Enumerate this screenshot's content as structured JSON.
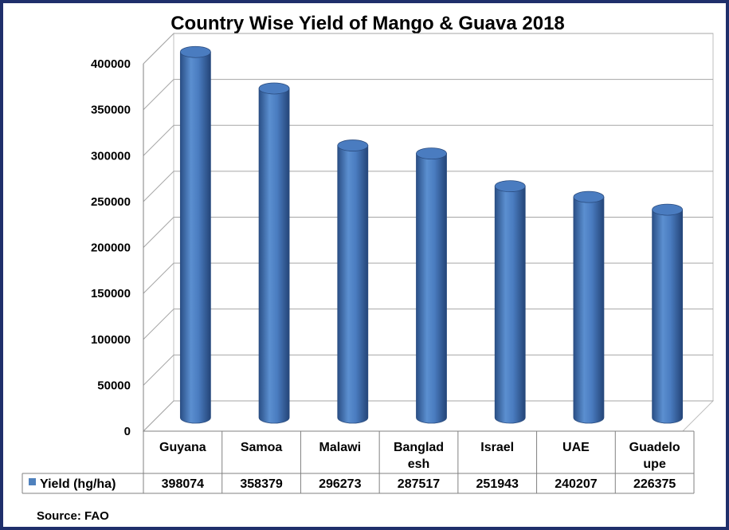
{
  "chart_data": {
    "type": "bar",
    "title": "Country Wise Yield of Mango & Guava 2018",
    "categories": [
      "Guyana",
      "Samoa",
      "Malawi",
      "Banglad esh",
      "Israel",
      "UAE",
      "Guadelo upe"
    ],
    "category_lines": [
      [
        "Guyana"
      ],
      [
        "Samoa"
      ],
      [
        "Malawi"
      ],
      [
        "Banglad",
        "esh"
      ],
      [
        "Israel"
      ],
      [
        "UAE"
      ],
      [
        "Guadelo",
        "upe"
      ]
    ],
    "series": [
      {
        "name": "Yield (hg/ha)",
        "values": [
          398074,
          358379,
          296273,
          287517,
          251943,
          240207,
          226375
        ],
        "value_labels": [
          "398074",
          "358379",
          "296273",
          "287517",
          "251943",
          "240207",
          "226375"
        ],
        "color": "#4f81bd"
      }
    ],
    "ylim": [
      0,
      400000
    ],
    "yticks": [
      0,
      50000,
      100000,
      150000,
      200000,
      250000,
      300000,
      350000,
      400000
    ],
    "ytick_labels": [
      "0",
      "50000",
      "100000",
      "150000",
      "200000",
      "250000",
      "300000",
      "350000",
      "400000"
    ],
    "grid": true,
    "style": "3d-cylinder",
    "data_table": true,
    "legend": "data-table-row-header",
    "source": "Source: FAO"
  }
}
